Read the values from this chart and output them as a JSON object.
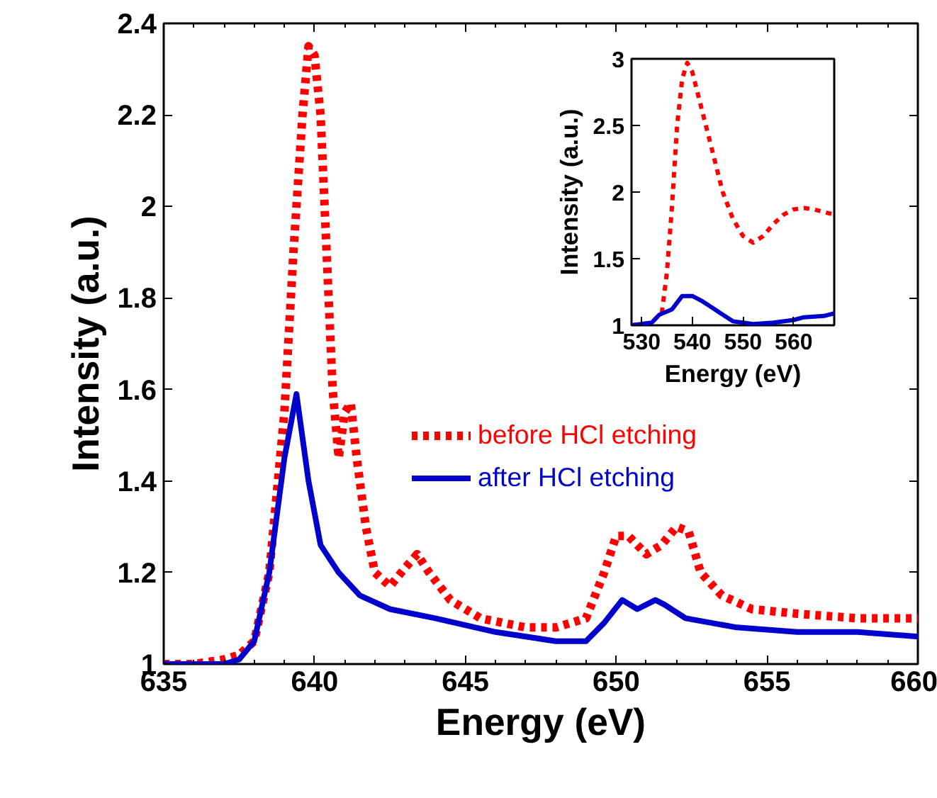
{
  "chart_data": [
    {
      "type": "line",
      "xlabel": "Energy (eV)",
      "ylabel": "Intensity (a.u.)",
      "xlim": [
        635,
        660
      ],
      "ylim": [
        1,
        2.4
      ],
      "xticks": [
        635,
        640,
        645,
        650,
        655,
        660
      ],
      "yticks": [
        1,
        1.2,
        1.4,
        1.6,
        1.8,
        2,
        2.2,
        2.4
      ],
      "legend": "right",
      "series": [
        {
          "name": "before HCl etching",
          "color": "#ff0000",
          "line_style": "dotted",
          "x": [
            635,
            636,
            637,
            637.5,
            638,
            638.5,
            639,
            639.3,
            639.6,
            639.8,
            640.0,
            640.2,
            640.4,
            640.6,
            640.8,
            641.0,
            641.2,
            641.4,
            641.7,
            642,
            642.5,
            643,
            643.4,
            643.8,
            644.5,
            645.5,
            647,
            648,
            649,
            649.6,
            650,
            650.4,
            651,
            651.5,
            652,
            652.4,
            652.8,
            653.5,
            654.5,
            656,
            658,
            660
          ],
          "values": [
            1.0,
            1.0,
            1.01,
            1.02,
            1.05,
            1.2,
            1.55,
            1.9,
            2.2,
            2.35,
            2.33,
            2.2,
            1.9,
            1.6,
            1.45,
            1.55,
            1.57,
            1.45,
            1.3,
            1.2,
            1.17,
            1.21,
            1.24,
            1.2,
            1.14,
            1.1,
            1.08,
            1.08,
            1.1,
            1.2,
            1.28,
            1.28,
            1.24,
            1.26,
            1.3,
            1.29,
            1.2,
            1.15,
            1.12,
            1.11,
            1.1,
            1.1
          ]
        },
        {
          "name": "after HCl etching",
          "color": "#0000cc",
          "line_style": "solid",
          "x": [
            635,
            636,
            637,
            637.5,
            638,
            638.5,
            639,
            639.4,
            639.8,
            640.2,
            640.8,
            641.5,
            642.5,
            644,
            646,
            648,
            649,
            649.6,
            650.2,
            650.7,
            651.3,
            651.6,
            652.3,
            654,
            656,
            658,
            660
          ],
          "values": [
            1.0,
            1.0,
            1.0,
            1.01,
            1.05,
            1.2,
            1.45,
            1.59,
            1.4,
            1.26,
            1.2,
            1.15,
            1.12,
            1.1,
            1.07,
            1.05,
            1.05,
            1.09,
            1.14,
            1.12,
            1.14,
            1.13,
            1.1,
            1.08,
            1.07,
            1.07,
            1.06
          ]
        }
      ]
    },
    {
      "type": "line",
      "xlabel": "Energy (eV)",
      "ylabel": "Intensity (a.u.)",
      "xlim": [
        528,
        568
      ],
      "ylim": [
        1,
        3
      ],
      "xticks": [
        530,
        540,
        550,
        560
      ],
      "yticks": [
        1,
        1.5,
        2,
        2.5,
        3
      ],
      "series": [
        {
          "color": "#ff0000",
          "line_style": "dotted",
          "x": [
            528,
            532,
            534,
            535,
            536,
            537,
            538,
            539,
            540,
            542,
            544,
            546,
            548,
            550,
            552,
            554,
            556,
            558,
            560,
            562,
            564,
            566,
            568
          ],
          "values": [
            1.0,
            1.02,
            1.1,
            1.4,
            1.9,
            2.5,
            2.85,
            2.97,
            2.9,
            2.6,
            2.3,
            2.0,
            1.8,
            1.67,
            1.62,
            1.67,
            1.76,
            1.83,
            1.87,
            1.88,
            1.87,
            1.85,
            1.83
          ]
        },
        {
          "color": "#0000cc",
          "line_style": "solid",
          "x": [
            528,
            532,
            533.5,
            536,
            538,
            540,
            542,
            544,
            546,
            548,
            550,
            552,
            556,
            560,
            562,
            566,
            568
          ],
          "values": [
            1.0,
            1.02,
            1.08,
            1.12,
            1.22,
            1.22,
            1.18,
            1.13,
            1.08,
            1.03,
            1.02,
            1.01,
            1.02,
            1.04,
            1.06,
            1.07,
            1.09
          ]
        }
      ]
    }
  ]
}
